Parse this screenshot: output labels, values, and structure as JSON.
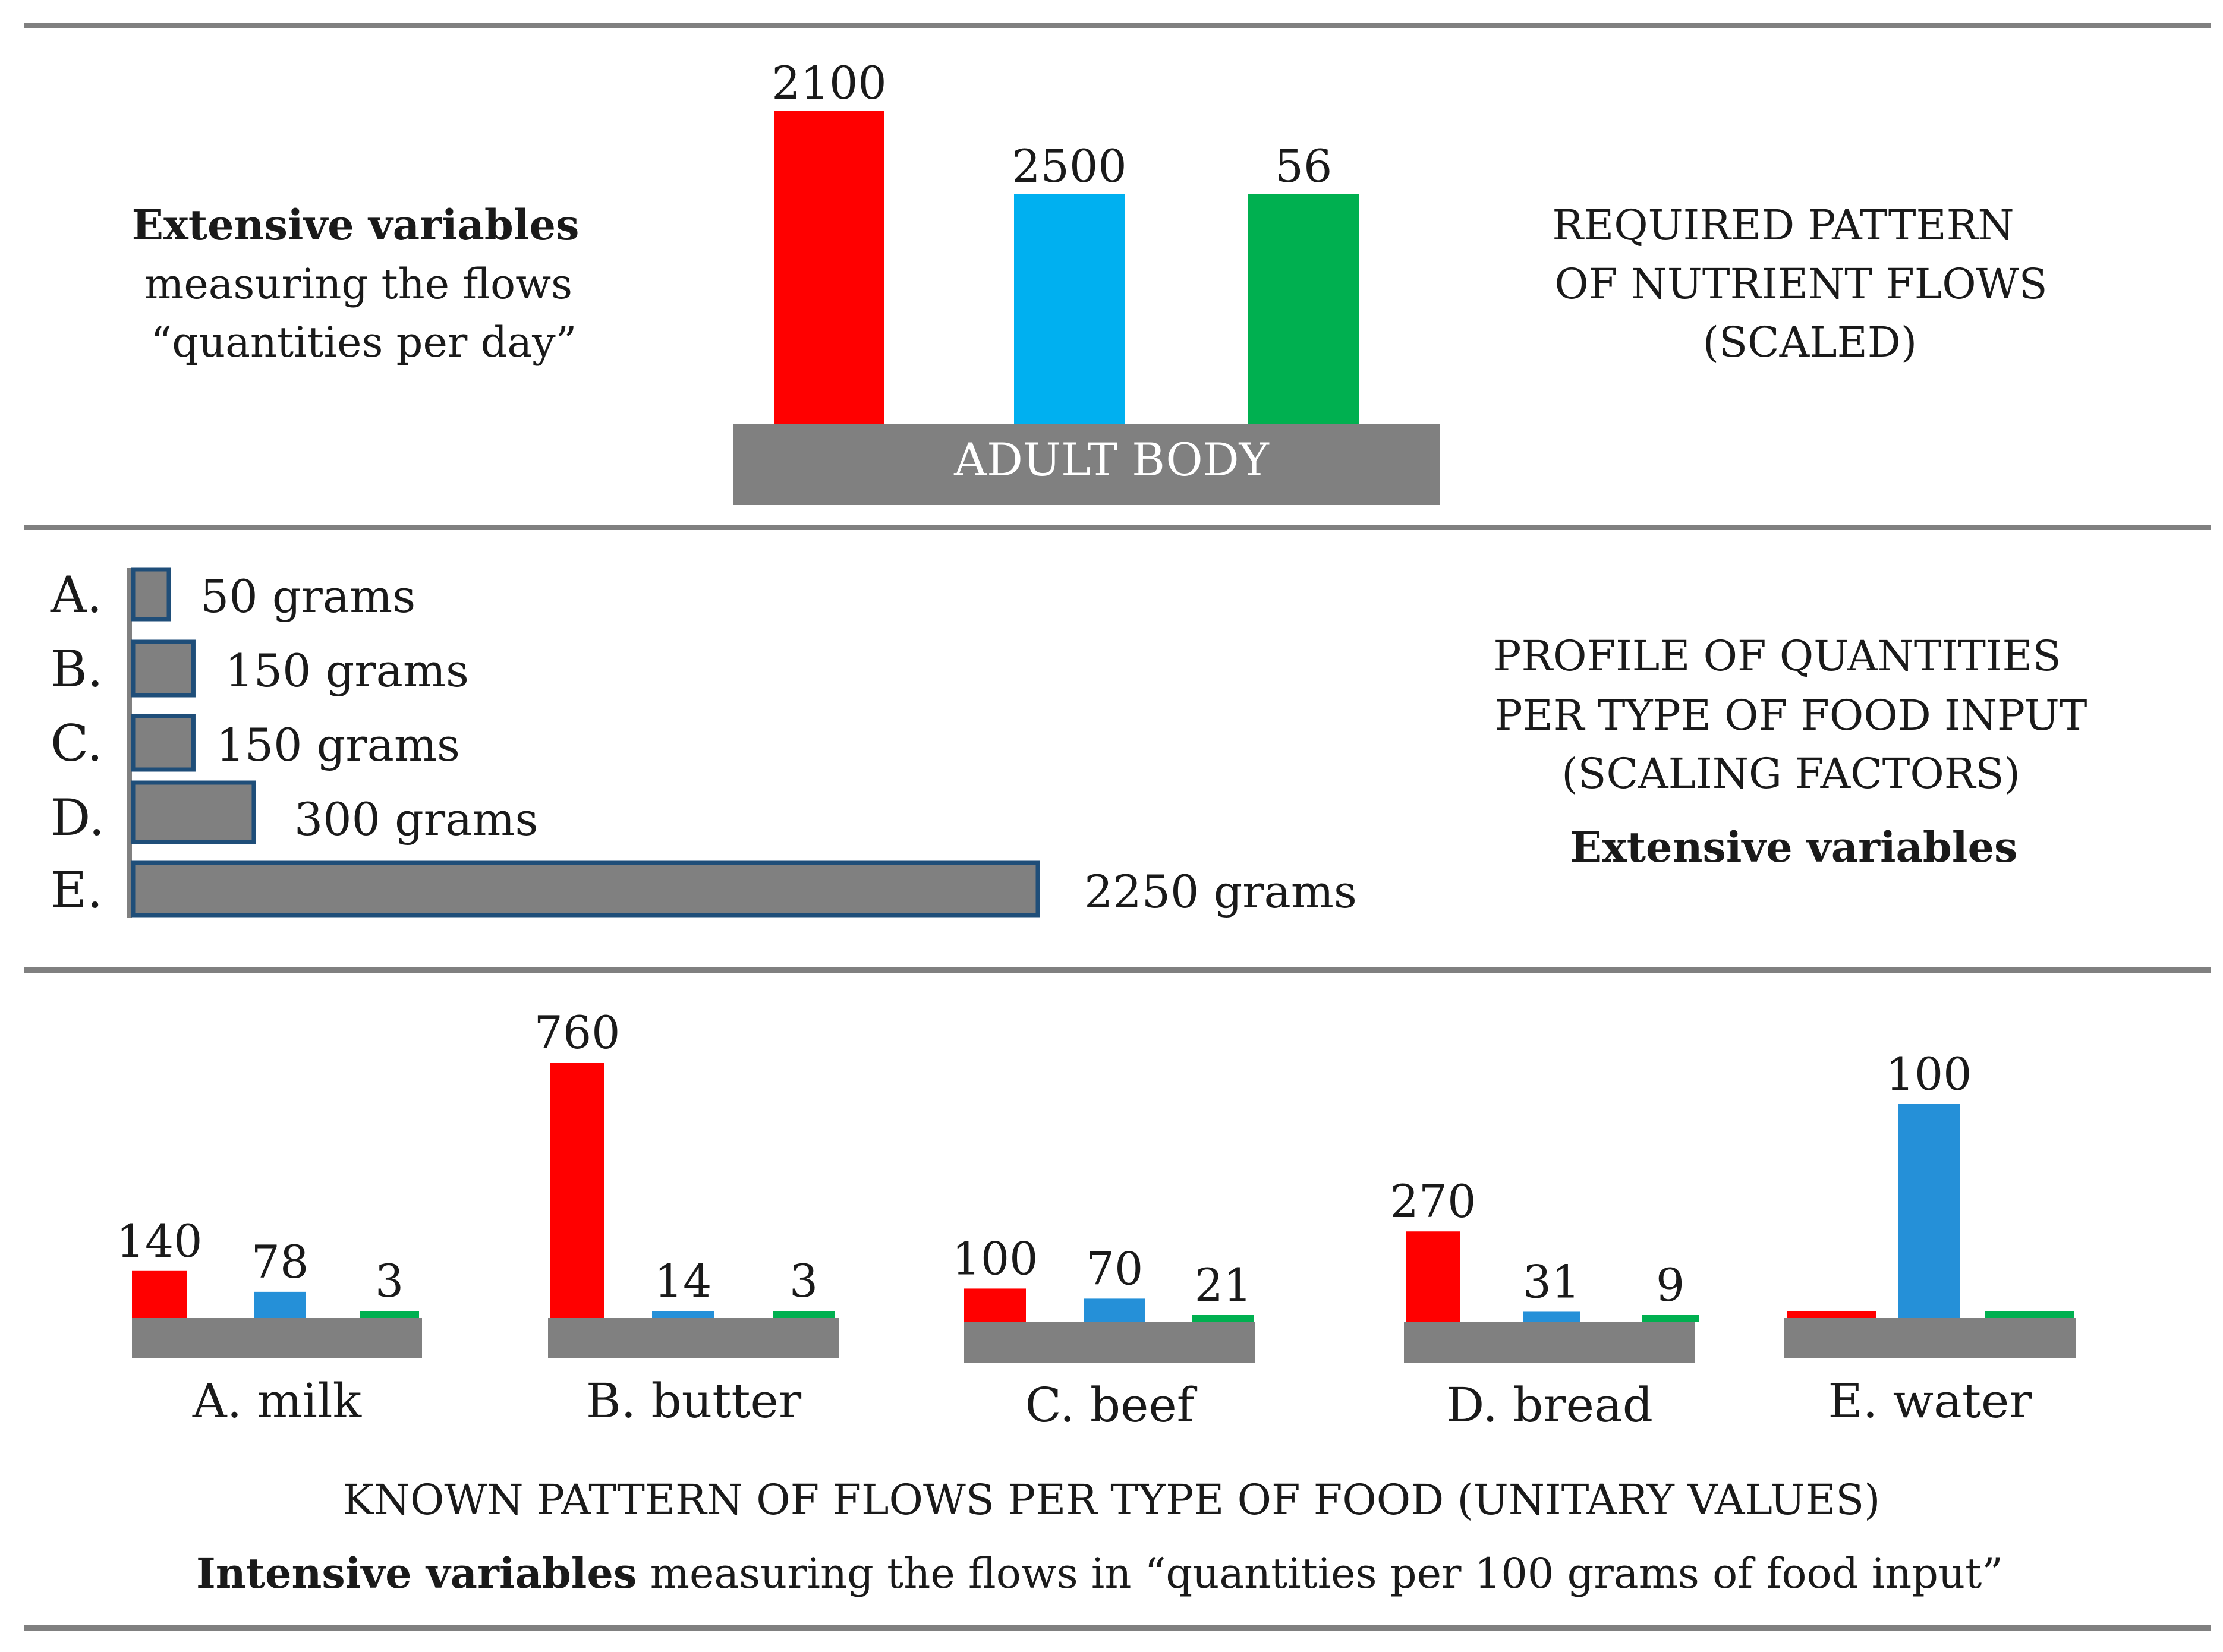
{
  "chart_data": [
    {
      "type": "bar",
      "title": "REQUIRED PATTERN OF NUTRIENT FLOWS (SCALED)",
      "title_lines": [
        "REQUIRED PATTERN",
        "OF NUTRIENT  FLOWS",
        "(SCALED)"
      ],
      "base_label": "ADULT BODY",
      "left_note": {
        "bold": "Extensive variables",
        "lines": [
          "measuring the flows",
          "“quantities per day”"
        ]
      },
      "values": [
        2100,
        2500,
        56
      ],
      "bar_colors": [
        "#ff0000",
        "#00b0f0",
        "#00b050"
      ]
    },
    {
      "type": "bar",
      "orientation": "horizontal",
      "title": "PROFILE OF QUANTITIES PER TYPE OF FOOD INPUT (SCALING FACTORS)",
      "title_lines": [
        "PROFILE OF QUANTITIES",
        "PER TYPE OF FOOD INPUT",
        "(SCALING FACTORS)"
      ],
      "subtitle": "Extensive variables",
      "categories": [
        "A.",
        "B.",
        "C.",
        "D.",
        "E."
      ],
      "values": [
        50,
        150,
        150,
        300,
        2250
      ],
      "value_labels": [
        "50 grams",
        "150 grams",
        "150 grams",
        "300 grams",
        "2250 grams"
      ],
      "unit": "grams",
      "bar_color": "#808080",
      "bar_outline": "#1f4e79"
    },
    {
      "type": "bar",
      "title": "KNOWN  PATTERN  OF FLOWS PER TYPE OF FOOD (UNITARY VALUES)",
      "note": {
        "bold": "Intensive variables",
        "rest": " measuring the flows in “quantities per 100 grams of food input”"
      },
      "series_colors": [
        "#ff0000",
        "#2590d8",
        "#00b050"
      ],
      "groups": [
        {
          "label": "A. milk",
          "values": [
            140,
            78,
            3
          ],
          "labels": [
            "140",
            "78",
            "3"
          ]
        },
        {
          "label": "B. butter",
          "values": [
            760,
            14,
            3
          ],
          "labels": [
            "760",
            "14",
            "3"
          ]
        },
        {
          "label": "C. beef",
          "values": [
            100,
            70,
            21
          ],
          "labels": [
            "100",
            "70",
            "21"
          ]
        },
        {
          "label": "D. bread",
          "values": [
            270,
            31,
            9
          ],
          "labels": [
            "270",
            "31",
            "9"
          ]
        },
        {
          "label": "E. water",
          "values": [
            0,
            100,
            0
          ],
          "labels": [
            "",
            "100",
            ""
          ]
        }
      ]
    }
  ],
  "colors": {
    "divider": "#808080",
    "base": "#808080",
    "base_text": "#ffffff"
  }
}
